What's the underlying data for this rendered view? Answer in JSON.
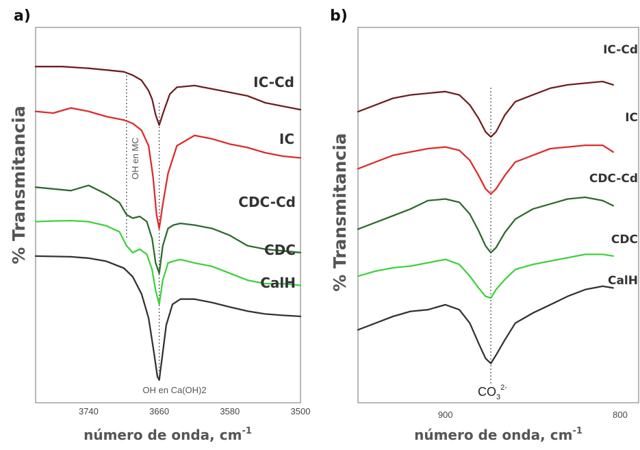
{
  "chart_data": [
    {
      "panel": "a)",
      "type": "line",
      "xlabel": "número de onda, cm",
      "xlabel_sup": "-1",
      "ylabel": "% Transmitancia",
      "xlim": [
        3800,
        3500
      ],
      "x_ticks": [
        3740,
        3660,
        3580,
        3500
      ],
      "x_tick_labels": [
        "3740",
        "3660",
        "3580",
        "3500"
      ],
      "grid": false,
      "legend": "labels next to curves on the right",
      "annotations": [
        {
          "text": "OH en MC",
          "x": 3697,
          "style": "vertical"
        },
        {
          "text": "OH en Ca(OH)2",
          "x": 3660
        }
      ],
      "series": [
        {
          "name": "IC-Cd",
          "color": "#6e1f1f",
          "x": [
            3800,
            3770,
            3740,
            3720,
            3700,
            3690,
            3680,
            3672,
            3668,
            3664,
            3660,
            3655,
            3648,
            3640,
            3620,
            3600,
            3580,
            3560,
            3540,
            3520,
            3500
          ],
          "y": [
            0.93,
            0.93,
            0.925,
            0.92,
            0.915,
            0.905,
            0.89,
            0.86,
            0.835,
            0.79,
            0.76,
            0.8,
            0.85,
            0.87,
            0.875,
            0.865,
            0.855,
            0.845,
            0.825,
            0.815,
            0.805
          ]
        },
        {
          "name": "IC",
          "color": "#e02a2a",
          "x": [
            3800,
            3780,
            3760,
            3740,
            3720,
            3700,
            3690,
            3680,
            3672,
            3667,
            3663,
            3660,
            3656,
            3650,
            3640,
            3620,
            3600,
            3580,
            3560,
            3540,
            3520,
            3500
          ],
          "y": [
            0.8,
            0.795,
            0.81,
            0.8,
            0.785,
            0.775,
            0.765,
            0.745,
            0.7,
            0.61,
            0.5,
            0.46,
            0.53,
            0.62,
            0.7,
            0.73,
            0.72,
            0.705,
            0.695,
            0.68,
            0.67,
            0.665
          ]
        },
        {
          "name": "CDC-Cd",
          "color": "#2d6a2d",
          "x": [
            3800,
            3780,
            3760,
            3740,
            3720,
            3705,
            3697,
            3690,
            3682,
            3674,
            3668,
            3664,
            3660,
            3656,
            3650,
            3644,
            3636,
            3620,
            3600,
            3580,
            3560,
            3540,
            3520,
            3500
          ],
          "y": [
            0.58,
            0.575,
            0.57,
            0.585,
            0.56,
            0.535,
            0.5,
            0.49,
            0.495,
            0.48,
            0.43,
            0.36,
            0.33,
            0.41,
            0.46,
            0.47,
            0.475,
            0.47,
            0.46,
            0.44,
            0.41,
            0.4,
            0.395,
            0.39
          ]
        },
        {
          "name": "CDC",
          "color": "#3fd13f",
          "x": [
            3800,
            3780,
            3760,
            3740,
            3720,
            3705,
            3697,
            3690,
            3682,
            3674,
            3668,
            3664,
            3660,
            3656,
            3650,
            3644,
            3636,
            3620,
            3600,
            3580,
            3560,
            3540,
            3520,
            3500
          ],
          "y": [
            0.48,
            0.482,
            0.483,
            0.48,
            0.468,
            0.45,
            0.41,
            0.39,
            0.4,
            0.385,
            0.34,
            0.28,
            0.24,
            0.31,
            0.36,
            0.365,
            0.37,
            0.36,
            0.35,
            0.33,
            0.31,
            0.3,
            0.3,
            0.295
          ]
        },
        {
          "name": "CalH",
          "color": "#333333",
          "x": [
            3800,
            3780,
            3760,
            3740,
            3720,
            3700,
            3690,
            3680,
            3672,
            3666,
            3662,
            3660,
            3657,
            3652,
            3645,
            3636,
            3620,
            3600,
            3580,
            3560,
            3540,
            3520,
            3500
          ],
          "y": [
            0.38,
            0.379,
            0.378,
            0.374,
            0.365,
            0.345,
            0.32,
            0.27,
            0.2,
            0.1,
            0.03,
            0.02,
            0.08,
            0.18,
            0.24,
            0.255,
            0.255,
            0.245,
            0.232,
            0.22,
            0.212,
            0.208,
            0.205
          ]
        }
      ]
    },
    {
      "panel": "b)",
      "type": "line",
      "xlabel": "número de onda, cm",
      "xlabel_sup": "-1",
      "ylabel": "% Transmitancia",
      "xlim": [
        950,
        800
      ],
      "x_ticks": [
        900,
        800
      ],
      "x_tick_labels": [
        "900",
        "800"
      ],
      "grid": false,
      "legend": "labels next to curves on the right",
      "annotations": [
        {
          "text": "CO",
          "sub": "3",
          "sup": "2-",
          "x": 874
        }
      ],
      "series": [
        {
          "name": "IC-Cd",
          "color": "#6e1f1f",
          "x": [
            950,
            940,
            930,
            920,
            910,
            900,
            892,
            886,
            881,
            877,
            874,
            871,
            866,
            860,
            850,
            840,
            830,
            820,
            810,
            804
          ],
          "y": [
            0.81,
            0.83,
            0.85,
            0.86,
            0.865,
            0.87,
            0.86,
            0.83,
            0.79,
            0.75,
            0.735,
            0.75,
            0.8,
            0.84,
            0.86,
            0.88,
            0.89,
            0.895,
            0.9,
            0.89
          ]
        },
        {
          "name": "IC",
          "color": "#e02a2a",
          "x": [
            950,
            940,
            930,
            920,
            910,
            900,
            892,
            886,
            881,
            877,
            874,
            871,
            866,
            860,
            850,
            840,
            830,
            820,
            810,
            804
          ],
          "y": [
            0.64,
            0.66,
            0.68,
            0.69,
            0.7,
            0.705,
            0.695,
            0.665,
            0.62,
            0.58,
            0.565,
            0.58,
            0.62,
            0.66,
            0.68,
            0.7,
            0.705,
            0.71,
            0.71,
            0.69
          ]
        },
        {
          "name": "CDC-Cd",
          "color": "#2d6a2d",
          "x": [
            950,
            940,
            930,
            920,
            910,
            900,
            892,
            886,
            881,
            877,
            874,
            871,
            866,
            860,
            850,
            840,
            830,
            820,
            810,
            804
          ],
          "y": [
            0.46,
            0.48,
            0.5,
            0.52,
            0.545,
            0.55,
            0.54,
            0.505,
            0.455,
            0.41,
            0.39,
            0.405,
            0.45,
            0.49,
            0.52,
            0.535,
            0.55,
            0.555,
            0.545,
            0.53
          ]
        },
        {
          "name": "CDC",
          "color": "#3fd13f",
          "x": [
            950,
            940,
            930,
            920,
            910,
            900,
            892,
            886,
            881,
            877,
            874,
            871,
            866,
            860,
            850,
            840,
            830,
            820,
            810,
            804
          ],
          "y": [
            0.32,
            0.335,
            0.345,
            0.35,
            0.36,
            0.37,
            0.355,
            0.32,
            0.285,
            0.26,
            0.255,
            0.28,
            0.31,
            0.34,
            0.355,
            0.365,
            0.375,
            0.385,
            0.385,
            0.38
          ]
        },
        {
          "name": "CalH",
          "color": "#333333",
          "x": [
            950,
            940,
            930,
            920,
            910,
            900,
            892,
            886,
            881,
            877,
            874,
            871,
            866,
            860,
            850,
            840,
            830,
            820,
            810,
            804
          ],
          "y": [
            0.16,
            0.18,
            0.2,
            0.215,
            0.22,
            0.235,
            0.22,
            0.18,
            0.12,
            0.075,
            0.06,
            0.085,
            0.13,
            0.18,
            0.21,
            0.235,
            0.26,
            0.28,
            0.29,
            0.285
          ]
        }
      ]
    }
  ]
}
